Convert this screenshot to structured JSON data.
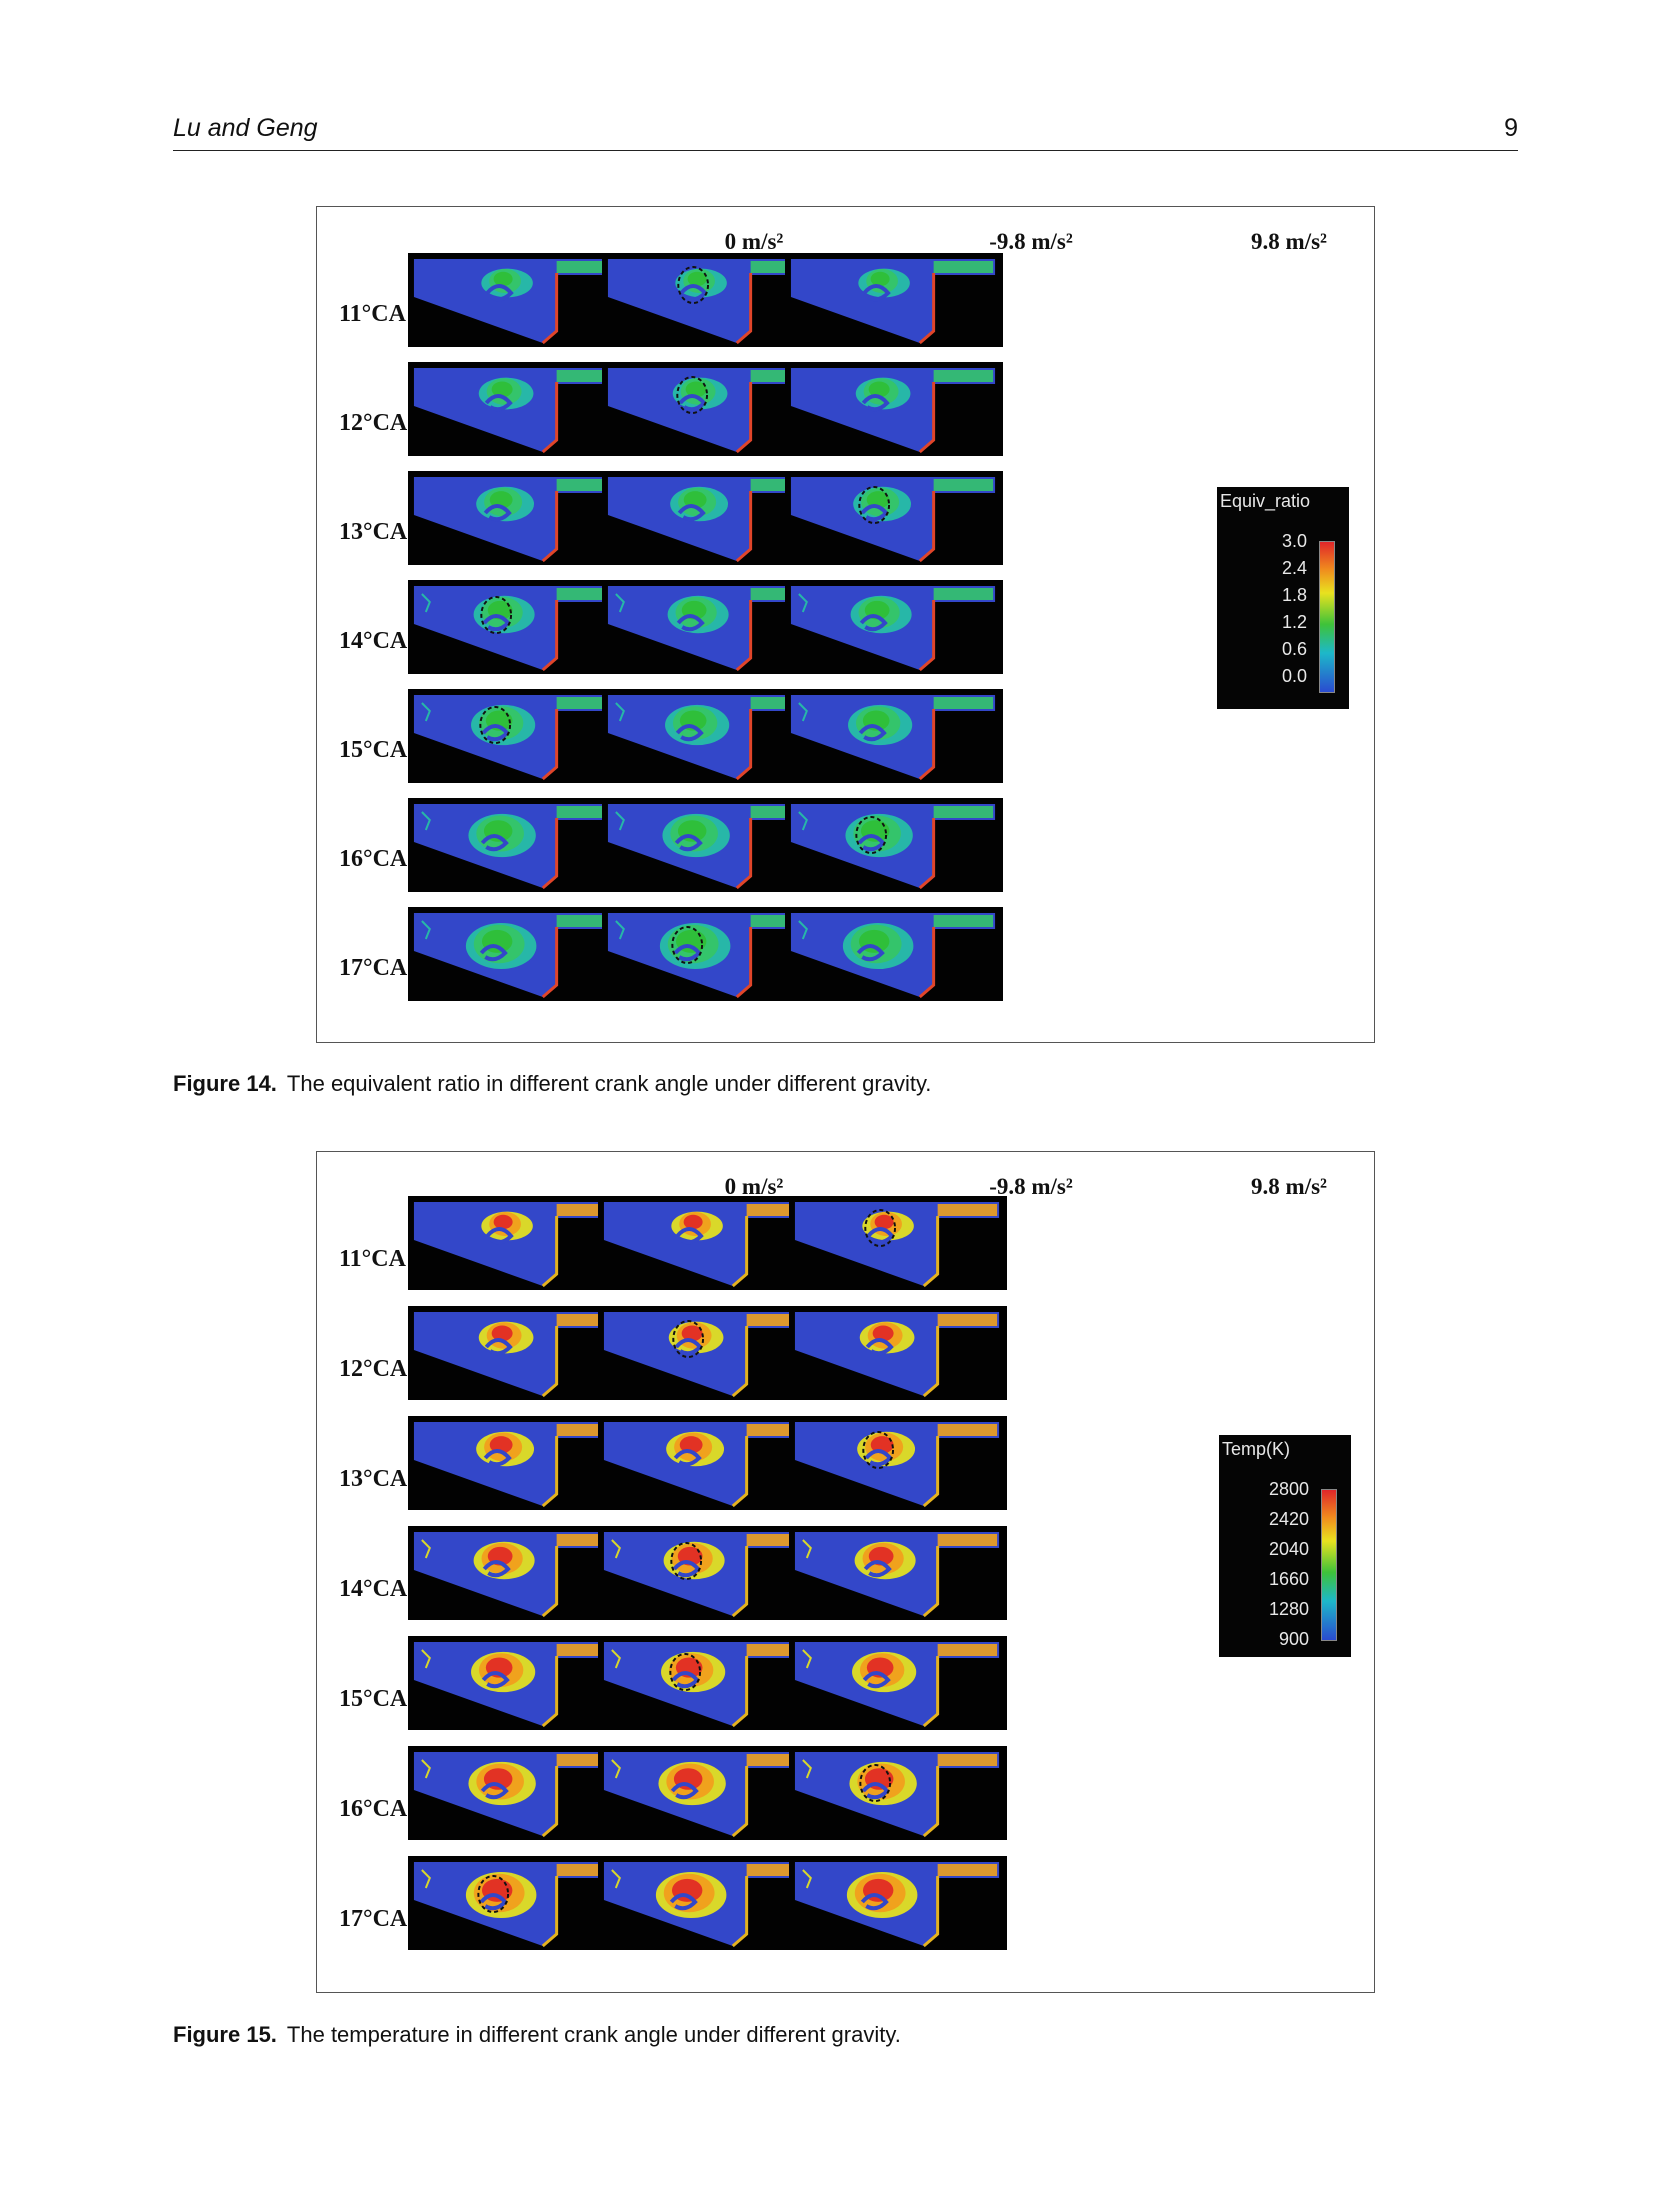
{
  "header": {
    "authors": "Lu and Geng",
    "page_number": "9"
  },
  "figure14": {
    "columns": [
      "0 m/s²",
      "-9.8 m/s²",
      "9.8 m/s²"
    ],
    "rows": [
      "11°CA",
      "12°CA",
      "13°CA",
      "14°CA",
      "15°CA",
      "16°CA",
      "17°CA"
    ],
    "legend": {
      "title": "Equiv_ratio",
      "ticks": [
        "3.0",
        "2.4",
        "1.8",
        "1.2",
        "0.6",
        "0.0"
      ]
    },
    "caption_label": "Figure 14.",
    "caption_text": "The equivalent ratio in different crank angle under different gravity."
  },
  "figure15": {
    "columns": [
      "0 m/s²",
      "-9.8 m/s²",
      "9.8 m/s²"
    ],
    "rows": [
      "11°CA",
      "12°CA",
      "13°CA",
      "14°CA",
      "15°CA",
      "16°CA",
      "17°CA"
    ],
    "legend": {
      "title": "Temp(K)",
      "ticks": [
        "2800",
        "2420",
        "2040",
        "1660",
        "1280",
        "900"
      ]
    },
    "caption_label": "Figure 15.",
    "caption_text": "The temperature in different crank angle under different gravity."
  }
}
